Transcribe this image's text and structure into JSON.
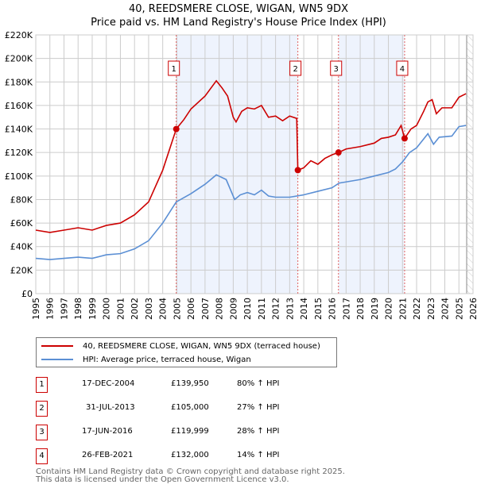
{
  "title": "40, REEDSMERE CLOSE, WIGAN, WN5 9DX",
  "subtitle": "Price paid vs. HM Land Registry's House Price Index (HPI)",
  "colors": {
    "property": "#cc0000",
    "hpi": "#5b8fd4",
    "shade": "#eef3fd"
  },
  "legend": {
    "property": "40, REEDSMERE CLOSE, WIGAN, WN5 9DX (terraced house)",
    "hpi": "HPI: Average price, terraced house, Wigan"
  },
  "sales": [
    {
      "n": "1",
      "date": "17-DEC-2004",
      "price": "£139,950",
      "hpi": "80% ↑ HPI",
      "x": 2004.96,
      "y": 139950
    },
    {
      "n": "2",
      "date": "31-JUL-2013",
      "price": "£105,000",
      "hpi": "27% ↑ HPI",
      "x": 2013.58,
      "y": 105000
    },
    {
      "n": "3",
      "date": "17-JUN-2016",
      "price": "£119,999",
      "hpi": "28% ↑ HPI",
      "x": 2016.46,
      "y": 119999
    },
    {
      "n": "4",
      "date": "26-FEB-2021",
      "price": "£132,000",
      "hpi": "14% ↑ HPI",
      "x": 2021.15,
      "y": 132000
    }
  ],
  "footer": [
    "Contains HM Land Registry data © Crown copyright and database right 2025.",
    "This data is licensed under the Open Government Licence v3.0."
  ],
  "chart_data": {
    "type": "line",
    "xlim": [
      1995,
      2026
    ],
    "ylim": [
      0,
      220000
    ],
    "yticks": [
      "£0",
      "£20K",
      "£40K",
      "£60K",
      "£80K",
      "£100K",
      "£120K",
      "£140K",
      "£160K",
      "£180K",
      "£200K",
      "£220K"
    ],
    "xticks": [
      "1995",
      "1996",
      "1997",
      "1998",
      "1999",
      "2000",
      "2001",
      "2002",
      "2003",
      "2004",
      "2005",
      "2006",
      "2007",
      "2008",
      "2009",
      "2010",
      "2011",
      "2012",
      "2013",
      "2014",
      "2015",
      "2016",
      "2017",
      "2018",
      "2019",
      "2020",
      "2021",
      "2022",
      "2023",
      "2024",
      "2025",
      "2026"
    ],
    "series": [
      {
        "name": "property",
        "points": [
          [
            1995,
            54
          ],
          [
            1996,
            52
          ],
          [
            1997,
            54
          ],
          [
            1998,
            56
          ],
          [
            1999,
            54
          ],
          [
            2000,
            58
          ],
          [
            2001,
            60
          ],
          [
            2002,
            67
          ],
          [
            2003,
            78
          ],
          [
            2004,
            105
          ],
          [
            2004.96,
            140
          ],
          [
            2005.5,
            148
          ],
          [
            2006,
            157
          ],
          [
            2007,
            168
          ],
          [
            2007.8,
            181
          ],
          [
            2008.2,
            175
          ],
          [
            2008.6,
            168
          ],
          [
            2009,
            150
          ],
          [
            2009.2,
            146
          ],
          [
            2009.6,
            155
          ],
          [
            2010,
            158
          ],
          [
            2010.5,
            157
          ],
          [
            2011,
            160
          ],
          [
            2011.5,
            150
          ],
          [
            2012,
            151
          ],
          [
            2012.5,
            147
          ],
          [
            2013,
            151
          ],
          [
            2013.5,
            149
          ],
          [
            2013.58,
            105
          ],
          [
            2014,
            107
          ],
          [
            2014.5,
            113
          ],
          [
            2015,
            110
          ],
          [
            2015.5,
            115
          ],
          [
            2016,
            118
          ],
          [
            2016.46,
            120
          ],
          [
            2017,
            123
          ],
          [
            2018,
            125
          ],
          [
            2019,
            128
          ],
          [
            2019.5,
            132
          ],
          [
            2020,
            133
          ],
          [
            2020.5,
            135
          ],
          [
            2020.9,
            143
          ],
          [
            2021.15,
            132
          ],
          [
            2021.6,
            140
          ],
          [
            2022,
            143
          ],
          [
            2022.5,
            155
          ],
          [
            2022.8,
            163
          ],
          [
            2023.1,
            165
          ],
          [
            2023.4,
            153
          ],
          [
            2023.8,
            158
          ],
          [
            2024.5,
            158
          ],
          [
            2025,
            167
          ],
          [
            2025.5,
            170
          ]
        ]
      },
      {
        "name": "hpi",
        "points": [
          [
            1995,
            30
          ],
          [
            1996,
            29
          ],
          [
            1997,
            30
          ],
          [
            1998,
            31
          ],
          [
            1999,
            30
          ],
          [
            2000,
            33
          ],
          [
            2001,
            34
          ],
          [
            2002,
            38
          ],
          [
            2003,
            45
          ],
          [
            2004,
            60
          ],
          [
            2004.96,
            78
          ],
          [
            2006,
            85
          ],
          [
            2007,
            93
          ],
          [
            2007.8,
            101
          ],
          [
            2008.5,
            97
          ],
          [
            2009.1,
            80
          ],
          [
            2009.5,
            84
          ],
          [
            2010,
            86
          ],
          [
            2010.5,
            84
          ],
          [
            2011,
            88
          ],
          [
            2011.5,
            83
          ],
          [
            2012,
            82
          ],
          [
            2013,
            82
          ],
          [
            2014,
            84
          ],
          [
            2015,
            87
          ],
          [
            2016,
            90
          ],
          [
            2016.5,
            94
          ],
          [
            2017,
            95
          ],
          [
            2018,
            97
          ],
          [
            2019,
            100
          ],
          [
            2020,
            103
          ],
          [
            2020.5,
            106
          ],
          [
            2021,
            112
          ],
          [
            2021.5,
            120
          ],
          [
            2022,
            124
          ],
          [
            2022.8,
            136
          ],
          [
            2023.2,
            127
          ],
          [
            2023.6,
            133
          ],
          [
            2024.5,
            134
          ],
          [
            2025,
            142
          ],
          [
            2025.5,
            143
          ]
        ]
      }
    ],
    "shaded": [
      [
        2004.96,
        2013.58
      ],
      [
        2016.46,
        2021.15
      ]
    ],
    "forecast_from": 2025.55
  }
}
